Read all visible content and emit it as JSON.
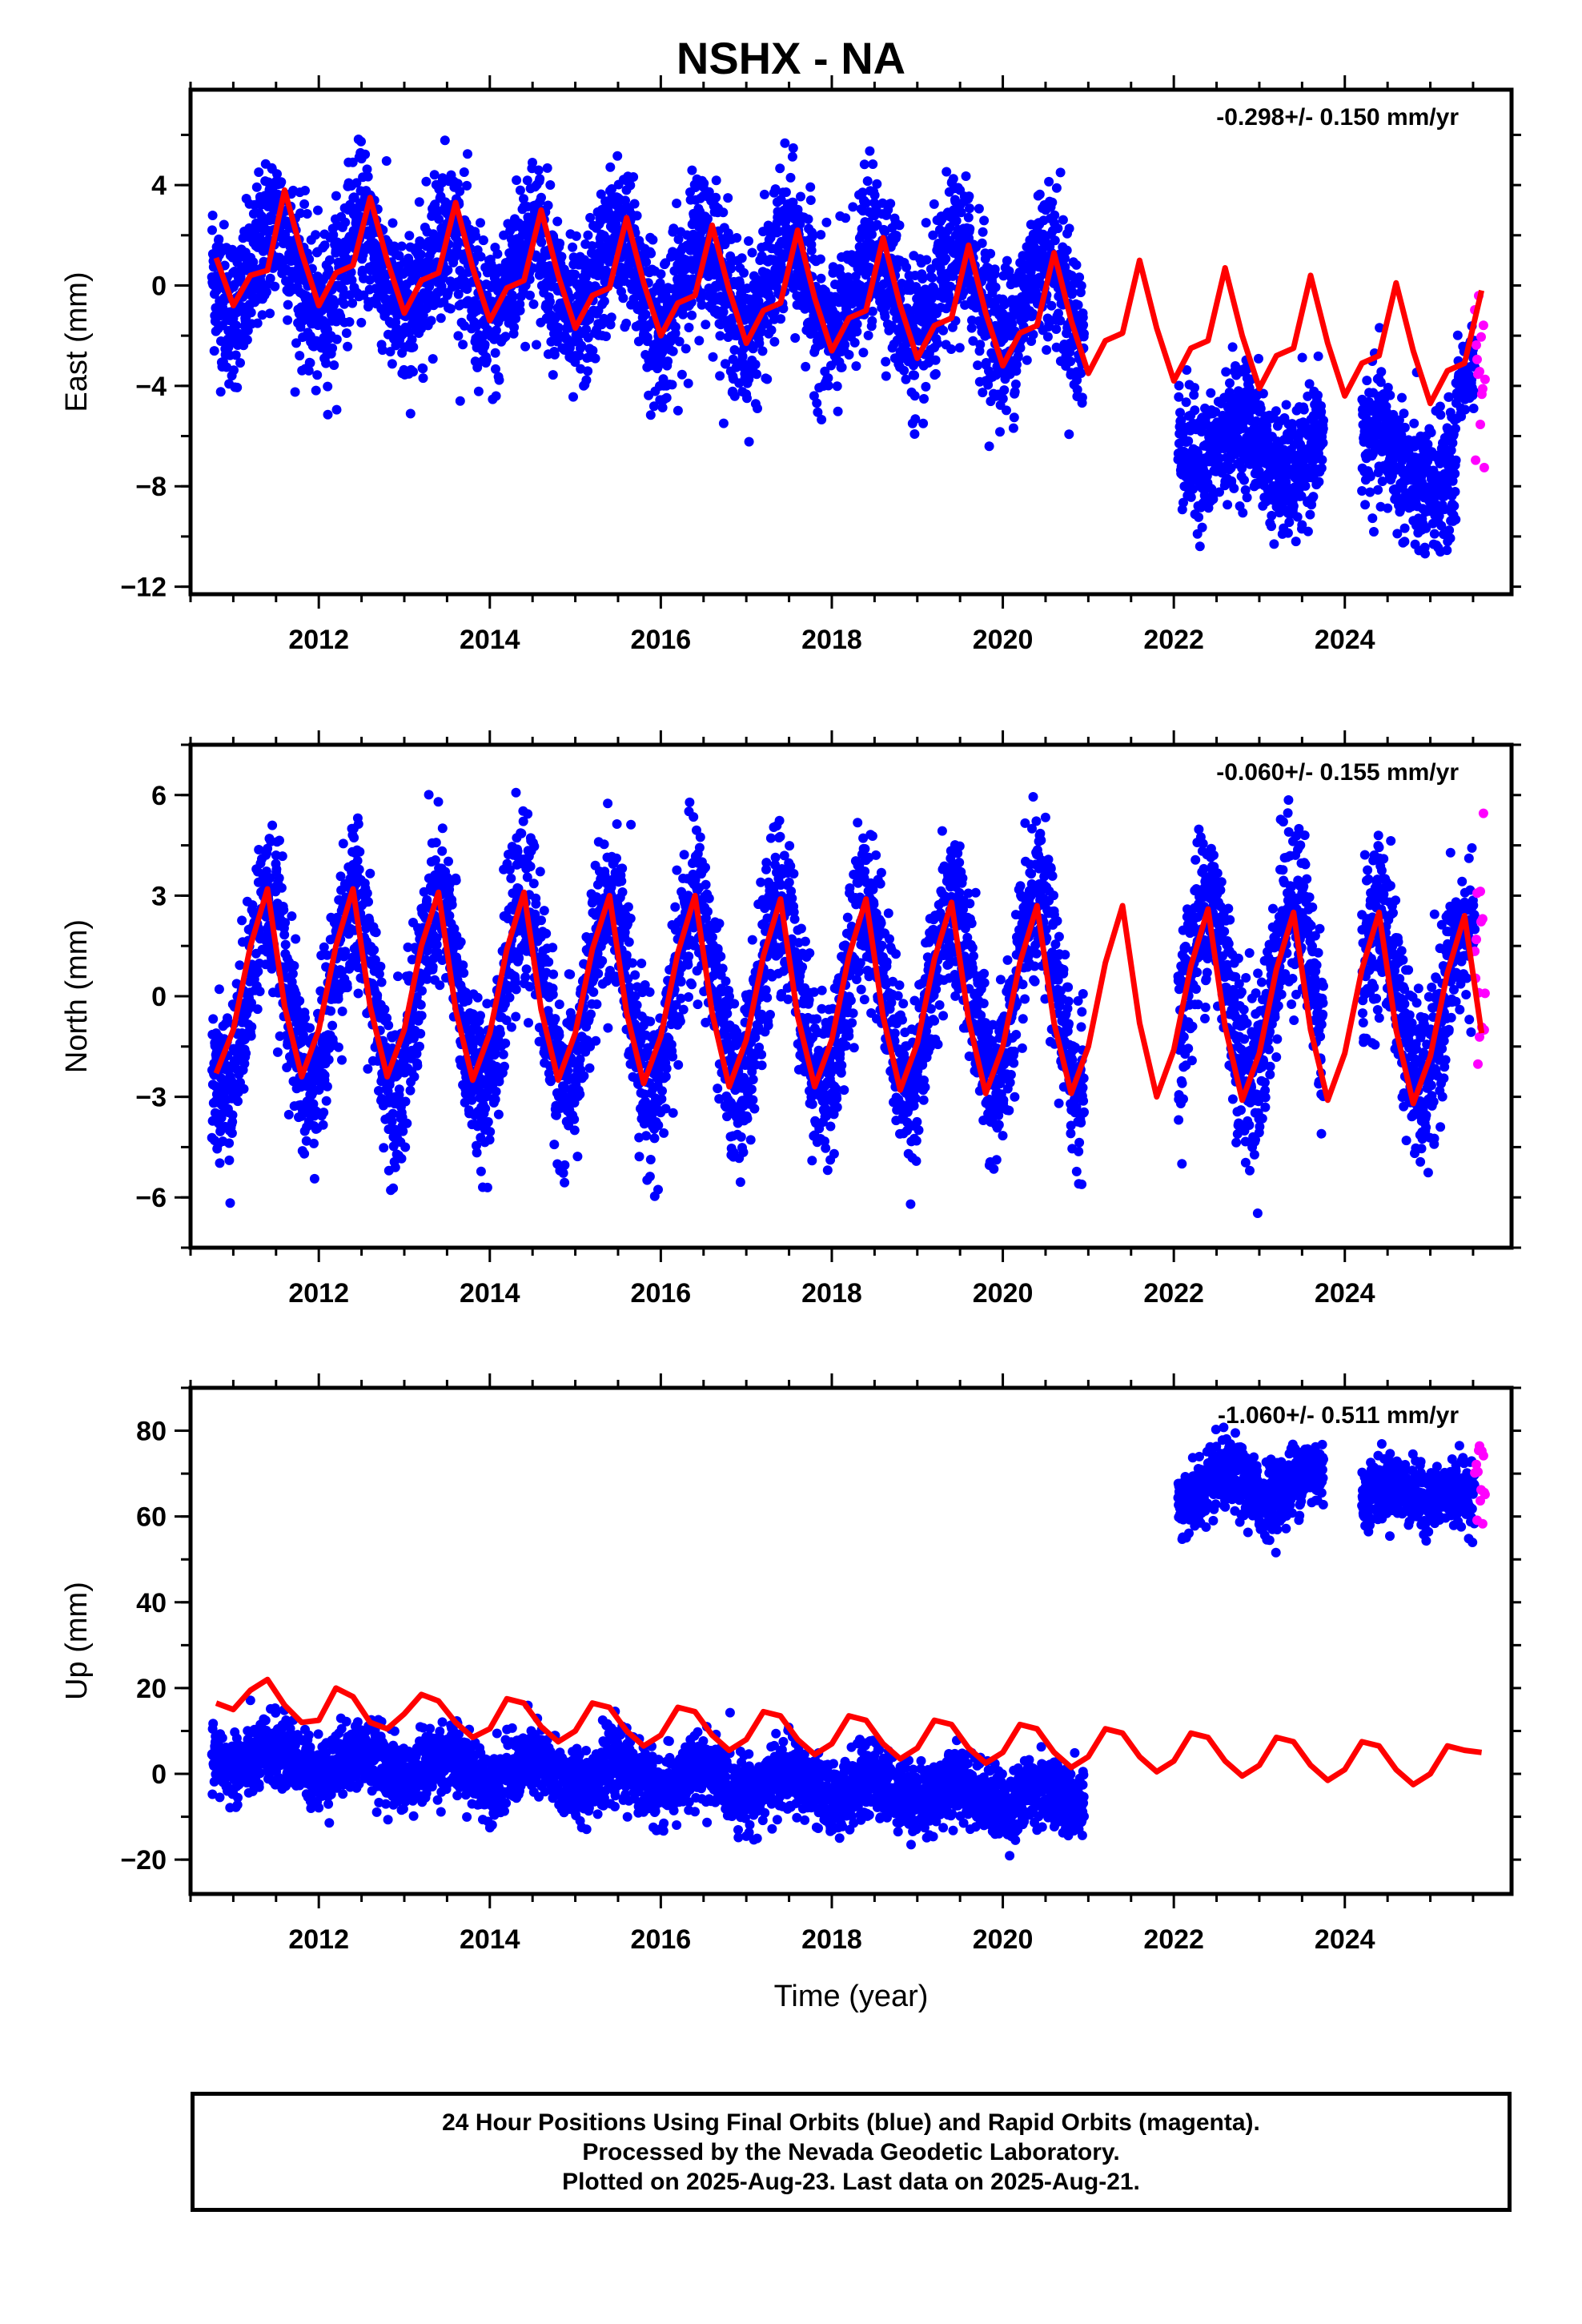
{
  "title": "NSHX - NA",
  "colors": {
    "final_orbits": "#0000ff",
    "rapid_orbits": "#ff00ff",
    "model": "#ff0000",
    "frame": "#000000"
  },
  "footer": {
    "line1": "24 Hour Positions Using Final Orbits (blue) and Rapid Orbits (magenta).",
    "line2": "Processed by the Nevada Geodetic Laboratory.",
    "line3": "Plotted on 2025-Aug-23. Last data on 2025-Aug-21."
  },
  "chart_data": [
    {
      "type": "scatter",
      "component": "east",
      "ylabel": "East (mm)",
      "xlabel": "",
      "rate_label": "-0.298+/- 0.150 mm/yr",
      "xlim": [
        2010.5,
        2025.95
      ],
      "ylim": [
        -12.3,
        7.8
      ],
      "x_ticks": [
        2012,
        2014,
        2016,
        2018,
        2020,
        2022,
        2024
      ],
      "y_ticks": [
        4,
        0,
        -4,
        -8,
        -12
      ],
      "y_tick_labels": [
        "4",
        "0",
        "−4",
        "−8",
        "−12"
      ],
      "model": {
        "x": [
          2010.8,
          2011.0,
          2011.2,
          2011.4,
          2011.6,
          2011.8,
          2012.0,
          2012.2,
          2012.4,
          2012.6,
          2012.8,
          2013.0,
          2013.2,
          2013.4,
          2013.6,
          2013.8,
          2014.0,
          2014.2,
          2014.4,
          2014.6,
          2014.8,
          2015.0,
          2015.2,
          2015.4,
          2015.6,
          2015.8,
          2016.0,
          2016.2,
          2016.4,
          2016.6,
          2016.8,
          2017.0,
          2017.2,
          2017.4,
          2017.6,
          2017.8,
          2018.0,
          2018.2,
          2018.4,
          2018.6,
          2018.8,
          2019.0,
          2019.2,
          2019.4,
          2019.6,
          2019.8,
          2020.0,
          2020.2,
          2020.4,
          2020.6,
          2020.8,
          2021.0,
          2021.2,
          2021.4,
          2021.6,
          2021.8,
          2022.0,
          2022.2,
          2022.4,
          2022.6,
          2022.8,
          2023.0,
          2023.2,
          2023.4,
          2023.6,
          2023.8,
          2024.0,
          2024.2,
          2024.4,
          2024.6,
          2024.8,
          2025.0,
          2025.2,
          2025.4,
          2025.6
        ],
        "y": [
          1.1,
          -0.8,
          0.4,
          0.6,
          3.8,
          1.3,
          -0.8,
          0.5,
          0.8,
          3.5,
          1.0,
          -1.1,
          0.2,
          0.5,
          3.3,
          0.7,
          -1.4,
          -0.1,
          0.2,
          3.0,
          0.4,
          -1.7,
          -0.4,
          -0.1,
          2.7,
          0.1,
          -2.0,
          -0.7,
          -0.4,
          2.4,
          -0.2,
          -2.3,
          -1.0,
          -0.7,
          2.2,
          -0.5,
          -2.6,
          -1.3,
          -1.0,
          1.9,
          -0.8,
          -2.9,
          -1.6,
          -1.3,
          1.6,
          -1.1,
          -3.2,
          -1.9,
          -1.6,
          1.3,
          -1.4,
          -3.5,
          -2.2,
          -1.9,
          1.0,
          -1.7,
          -3.8,
          -2.5,
          -2.2,
          0.7,
          -2.0,
          -4.1,
          -2.8,
          -2.5,
          0.4,
          -2.3,
          -4.4,
          -3.1,
          -2.8,
          0.1,
          -2.6,
          -4.7,
          -3.4,
          -3.1,
          -0.2
        ]
      },
      "segments": [
        {
          "orbit": "final",
          "x_range": [
            2010.75,
            2020.95
          ],
          "trend": [
            0.8,
            -0.6
          ],
          "amp": 1.8,
          "phase": 2011.5,
          "noise": 1.5,
          "density": 360
        },
        {
          "orbit": "final",
          "x_range": [
            2022.05,
            2023.75
          ],
          "trend": [
            -6.0,
            -7.0
          ],
          "amp": 1.0,
          "phase": 2022.8,
          "noise": 1.2,
          "density": 380
        },
        {
          "orbit": "final",
          "x_range": [
            2024.2,
            2025.3
          ],
          "trend": [
            -6.5,
            -8.0
          ],
          "amp": 0.8,
          "phase": 2024.4,
          "noise": 1.3,
          "density": 380
        },
        {
          "orbit": "final",
          "x_range": [
            2025.3,
            2025.52
          ],
          "trend": [
            -4.0,
            -3.5
          ],
          "amp": 0.0,
          "phase": 2025.3,
          "noise": 0.9,
          "density": 300
        },
        {
          "orbit": "rapid",
          "x_range": [
            2025.52,
            2025.64
          ],
          "trend": [
            -4.0,
            -4.0
          ],
          "amp": 0.0,
          "phase": 2025.5,
          "noise": 1.8,
          "density": 120
        }
      ]
    },
    {
      "type": "scatter",
      "component": "north",
      "ylabel": "North (mm)",
      "xlabel": "",
      "rate_label": "-0.060+/- 0.155 mm/yr",
      "xlim": [
        2010.5,
        2025.95
      ],
      "ylim": [
        -7.5,
        7.5
      ],
      "x_ticks": [
        2012,
        2014,
        2016,
        2018,
        2020,
        2022,
        2024
      ],
      "y_ticks": [
        6,
        3,
        0,
        -3,
        -6
      ],
      "y_tick_labels": [
        "6",
        "3",
        "0",
        "−3",
        "−6"
      ],
      "model": {
        "x": [
          2010.8,
          2011.0,
          2011.2,
          2011.4,
          2011.6,
          2011.8,
          2012.0,
          2012.2,
          2012.4,
          2012.6,
          2012.8,
          2013.0,
          2013.2,
          2013.4,
          2013.6,
          2013.8,
          2014.0,
          2014.2,
          2014.4,
          2014.6,
          2014.8,
          2015.0,
          2015.2,
          2015.4,
          2015.6,
          2015.8,
          2016.0,
          2016.2,
          2016.4,
          2016.6,
          2016.8,
          2017.0,
          2017.2,
          2017.4,
          2017.6,
          2017.8,
          2018.0,
          2018.2,
          2018.4,
          2018.6,
          2018.8,
          2019.0,
          2019.2,
          2019.4,
          2019.6,
          2019.8,
          2020.0,
          2020.2,
          2020.4,
          2020.6,
          2020.8,
          2021.0,
          2021.2,
          2021.4,
          2021.6,
          2021.8,
          2022.0,
          2022.2,
          2022.4,
          2022.6,
          2022.8,
          2023.0,
          2023.2,
          2023.4,
          2023.6,
          2023.8,
          2024.0,
          2024.2,
          2024.4,
          2024.6,
          2024.8,
          2025.0,
          2025.2,
          2025.4,
          2025.6
        ],
        "y": [
          -2.3,
          -1.0,
          1.5,
          3.2,
          -0.3,
          -2.4,
          -1.0,
          1.5,
          3.2,
          -0.3,
          -2.4,
          -1.0,
          1.5,
          3.1,
          -0.4,
          -2.5,
          -1.1,
          1.4,
          3.1,
          -0.4,
          -2.5,
          -1.1,
          1.4,
          3.0,
          -0.5,
          -2.6,
          -1.2,
          1.3,
          3.0,
          -0.5,
          -2.7,
          -1.3,
          1.2,
          2.9,
          -0.6,
          -2.7,
          -1.3,
          1.2,
          2.9,
          -0.6,
          -2.8,
          -1.4,
          1.1,
          2.8,
          -0.7,
          -2.9,
          -1.5,
          1.0,
          2.7,
          -0.8,
          -2.9,
          -1.5,
          1.0,
          2.7,
          -0.8,
          -3.0,
          -1.6,
          0.9,
          2.6,
          -0.9,
          -3.1,
          -1.7,
          0.8,
          2.5,
          -1.0,
          -3.1,
          -1.7,
          0.8,
          2.5,
          -1.0,
          -3.2,
          -1.8,
          0.7,
          2.4,
          -1.1
        ]
      },
      "segments": [
        {
          "orbit": "final",
          "x_range": [
            2010.75,
            2020.95
          ],
          "trend": [
            0.0,
            0.0
          ],
          "amp": 2.7,
          "phase": 2011.4,
          "noise": 1.2,
          "density": 360
        },
        {
          "orbit": "final",
          "x_range": [
            2022.05,
            2023.75
          ],
          "trend": [
            0.2,
            0.2
          ],
          "amp": 2.6,
          "phase": 2022.4,
          "noise": 1.3,
          "density": 380
        },
        {
          "orbit": "final",
          "x_range": [
            2024.2,
            2025.3
          ],
          "trend": [
            -0.2,
            -0.4
          ],
          "amp": 2.5,
          "phase": 2024.4,
          "noise": 1.2,
          "density": 380
        },
        {
          "orbit": "final",
          "x_range": [
            2025.3,
            2025.52
          ],
          "trend": [
            1.5,
            2.0
          ],
          "amp": 0.0,
          "phase": 2025.3,
          "noise": 1.0,
          "density": 300
        },
        {
          "orbit": "rapid",
          "x_range": [
            2025.52,
            2025.64
          ],
          "trend": [
            0.5,
            0.5
          ],
          "amp": 0.0,
          "phase": 2025.5,
          "noise": 1.5,
          "density": 120
        }
      ]
    },
    {
      "type": "scatter",
      "component": "up",
      "ylabel": "Up (mm)",
      "xlabel": "Time (year)",
      "rate_label": "-1.060+/- 0.511 mm/yr",
      "xlim": [
        2010.5,
        2025.95
      ],
      "ylim": [
        -28,
        90
      ],
      "x_ticks": [
        2012,
        2014,
        2016,
        2018,
        2020,
        2022,
        2024
      ],
      "y_ticks": [
        80,
        60,
        40,
        20,
        0,
        -20
      ],
      "y_tick_labels": [
        "80",
        "60",
        "40",
        "20",
        "0",
        "−20"
      ],
      "model": {
        "x": [
          2010.8,
          2011.0,
          2011.2,
          2011.4,
          2011.6,
          2011.8,
          2012.0,
          2012.2,
          2012.4,
          2012.6,
          2012.8,
          2013.0,
          2013.2,
          2013.4,
          2013.6,
          2013.8,
          2014.0,
          2014.2,
          2014.4,
          2014.6,
          2014.8,
          2015.0,
          2015.2,
          2015.4,
          2015.6,
          2015.8,
          2016.0,
          2016.2,
          2016.4,
          2016.6,
          2016.8,
          2017.0,
          2017.2,
          2017.4,
          2017.6,
          2017.8,
          2018.0,
          2018.2,
          2018.4,
          2018.6,
          2018.8,
          2019.0,
          2019.2,
          2019.4,
          2019.6,
          2019.8,
          2020.0,
          2020.2,
          2020.4,
          2020.6,
          2020.8,
          2021.0,
          2021.2,
          2021.4,
          2021.6,
          2021.8,
          2022.0,
          2022.2,
          2022.4,
          2022.6,
          2022.8,
          2023.0,
          2023.2,
          2023.4,
          2023.6,
          2023.8,
          2024.0,
          2024.2,
          2024.4,
          2024.6,
          2024.8,
          2025.0,
          2025.2,
          2025.4,
          2025.6
        ],
        "y": [
          16.5,
          15.0,
          19.5,
          22.0,
          16.0,
          12.0,
          12.5,
          20.0,
          18.0,
          12.0,
          10.5,
          14.0,
          18.5,
          17.0,
          12.0,
          8.5,
          10.5,
          17.5,
          16.5,
          11.0,
          7.5,
          10.0,
          16.5,
          15.5,
          10.0,
          6.5,
          9.0,
          15.5,
          14.5,
          9.0,
          5.5,
          8.0,
          14.5,
          13.5,
          8.0,
          4.5,
          7.0,
          13.5,
          12.5,
          7.0,
          3.5,
          6.0,
          12.5,
          11.5,
          6.0,
          2.5,
          5.0,
          11.5,
          10.5,
          5.0,
          1.5,
          4.0,
          10.5,
          9.5,
          4.0,
          0.5,
          3.0,
          9.5,
          8.5,
          3.0,
          -0.5,
          2.0,
          8.5,
          7.5,
          2.0,
          -1.5,
          1.0,
          7.5,
          6.5,
          1.0,
          -2.5,
          0.0,
          6.5,
          5.5,
          5.0
        ]
      },
      "segments": [
        {
          "orbit": "final",
          "x_range": [
            2010.75,
            2020.95
          ],
          "trend": [
            4.0,
            -6.0
          ],
          "amp": 2.5,
          "phase": 2011.5,
          "noise": 4.0,
          "density": 360
        },
        {
          "orbit": "final",
          "x_range": [
            2022.05,
            2023.75
          ],
          "trend": [
            66.0,
            68.0
          ],
          "amp": 3.0,
          "phase": 2022.6,
          "noise": 4.0,
          "density": 380
        },
        {
          "orbit": "final",
          "x_range": [
            2024.2,
            2025.3
          ],
          "trend": [
            65.0,
            66.0
          ],
          "amp": 2.0,
          "phase": 2024.5,
          "noise": 3.5,
          "density": 380
        },
        {
          "orbit": "final",
          "x_range": [
            2025.3,
            2025.52
          ],
          "trend": [
            66.0,
            66.0
          ],
          "amp": 0.0,
          "phase": 2025.3,
          "noise": 4.0,
          "density": 300
        },
        {
          "orbit": "rapid",
          "x_range": [
            2025.52,
            2025.64
          ],
          "trend": [
            68.0,
            68.0
          ],
          "amp": 0.0,
          "phase": 2025.5,
          "noise": 4.0,
          "density": 120
        }
      ]
    }
  ]
}
